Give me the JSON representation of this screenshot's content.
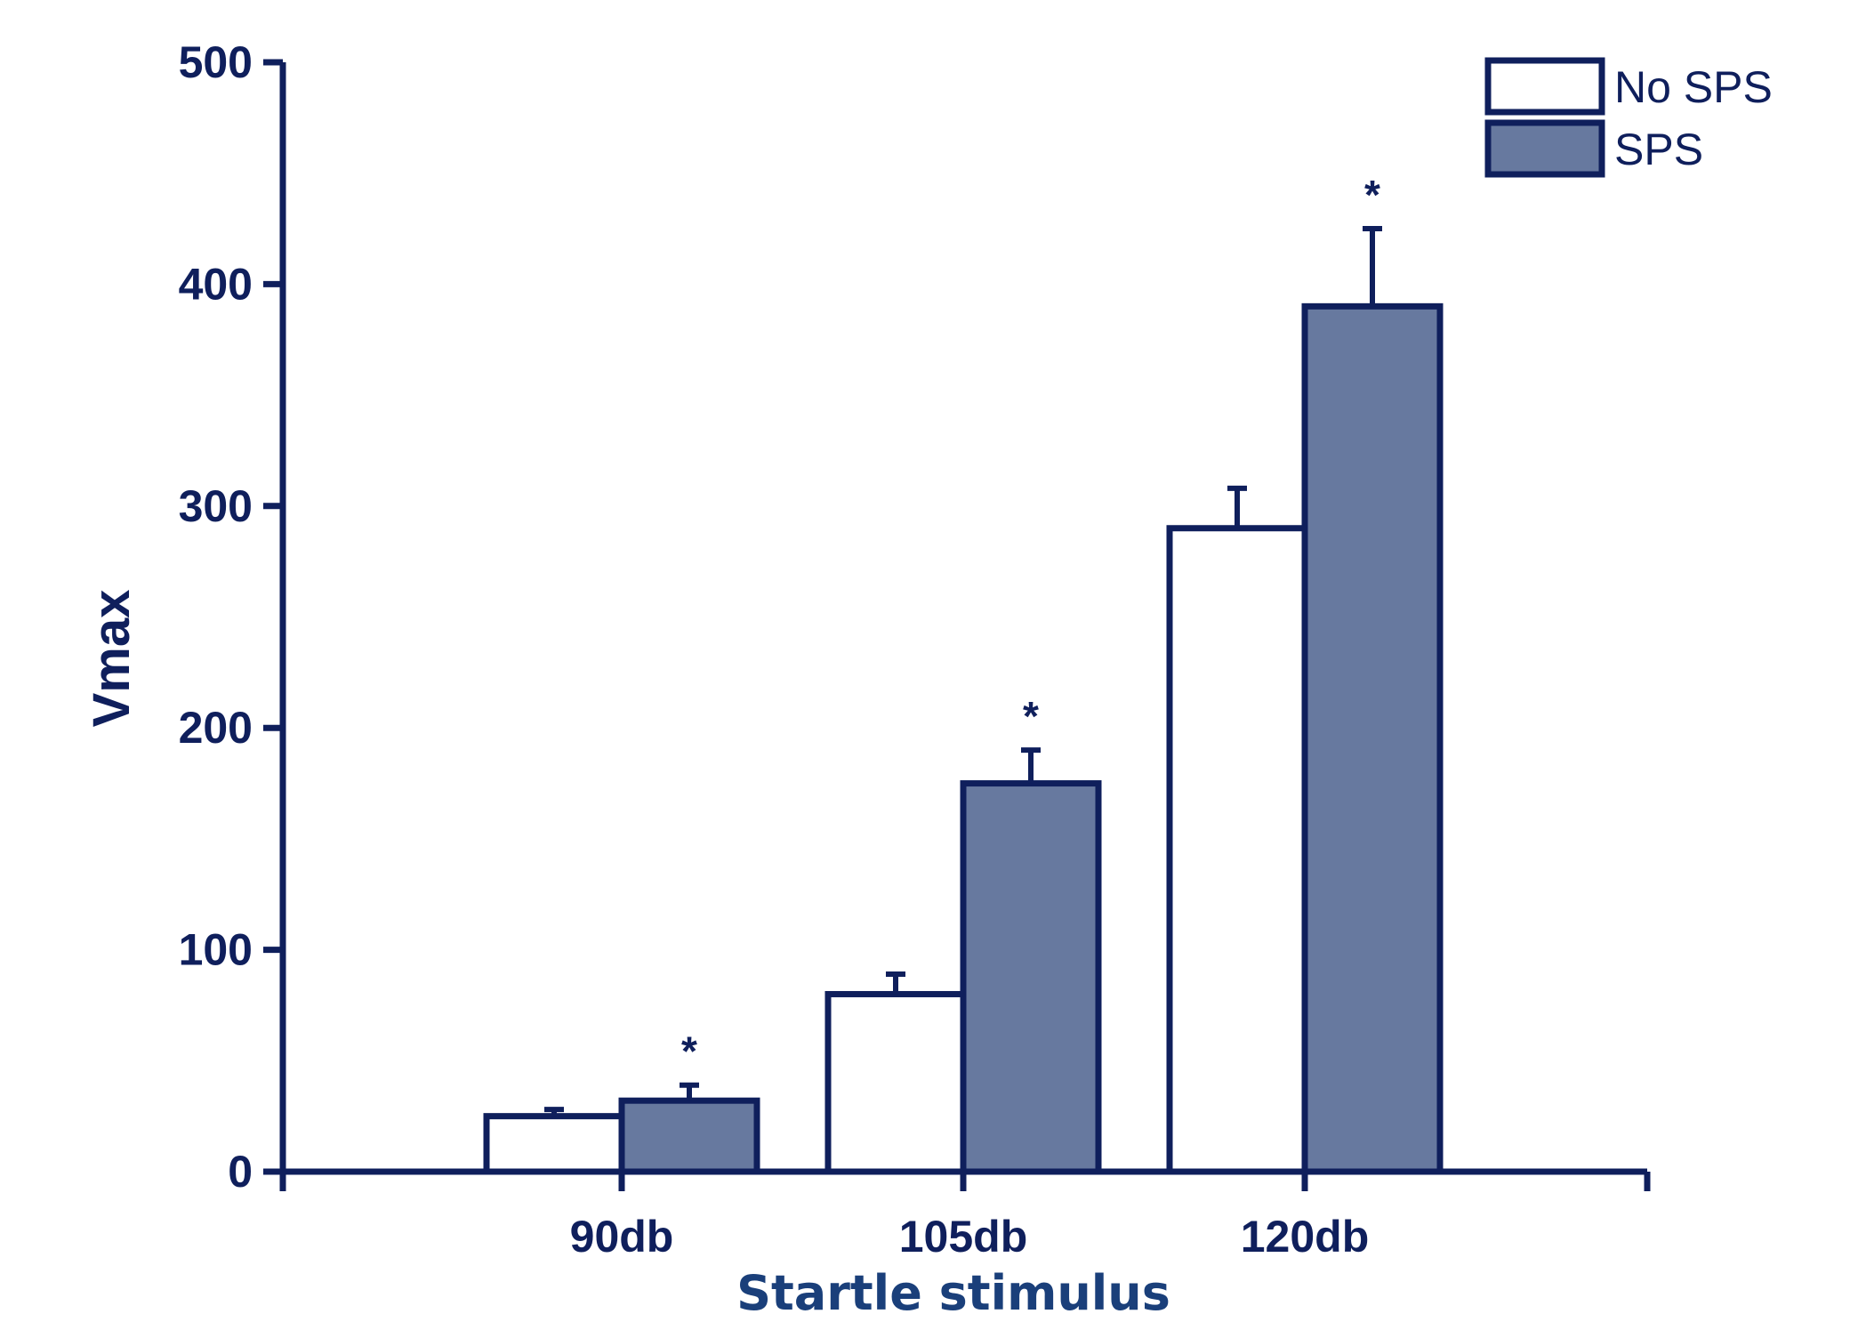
{
  "chart_data": {
    "type": "bar",
    "categories": [
      "90db",
      "105db",
      "120db"
    ],
    "series": [
      {
        "name": "No SPS",
        "values": [
          25,
          80,
          290
        ],
        "errors": [
          3,
          9,
          18
        ],
        "color": "#ffffff"
      },
      {
        "name": "SPS",
        "values": [
          32,
          175,
          390
        ],
        "errors": [
          7,
          15,
          35
        ],
        "color": "#67799f"
      }
    ],
    "significance": [
      "*",
      "*",
      "*"
    ],
    "xlabel": "Startle stimulus",
    "ylabel": "Vmax",
    "ylim": [
      0,
      500
    ],
    "yticks": [
      0,
      100,
      200,
      300,
      400,
      500
    ],
    "grid": false,
    "legend_position": "top-right",
    "axis_color": "#0f1f5c",
    "xlabel_color": "#1a3f7a"
  }
}
